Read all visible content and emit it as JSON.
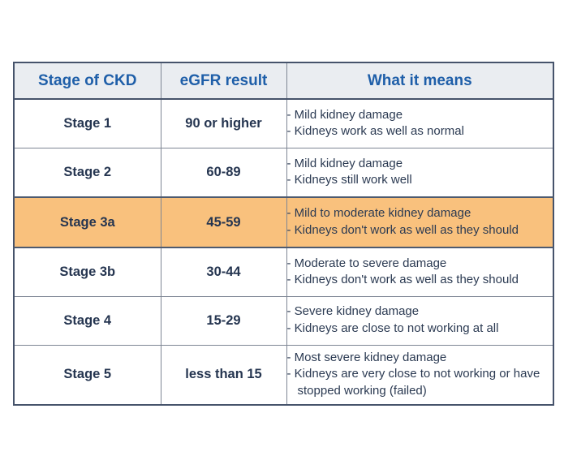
{
  "colors": {
    "header_text_blue": "#1f5fa9",
    "header_bg": "#eaedf1",
    "body_text_navy": "#253550",
    "highlight_orange": "#f9c17d",
    "outer_border": "#46536b",
    "inner_border": "#7e8694",
    "page_bg": "#ffffff"
  },
  "chart_data": {
    "type": "table",
    "title": "",
    "columns": [
      "Stage of CKD",
      "eGFR result",
      "What it means"
    ],
    "highlighted_row": "Stage 3a",
    "rows": [
      {
        "stage": "Stage 1",
        "egfr": "90 or higher",
        "notes": [
          "- Mild kidney damage",
          "- Kidneys work as well as normal"
        ]
      },
      {
        "stage": "Stage 2",
        "egfr": "60-89",
        "notes": [
          "- Mild kidney damage",
          "- Kidneys still work well"
        ]
      },
      {
        "stage": "Stage 3a",
        "egfr": "45-59",
        "notes": [
          "- Mild to moderate kidney damage",
          "- Kidneys don't work as well as they should"
        ]
      },
      {
        "stage": "Stage 3b",
        "egfr": "30-44",
        "notes": [
          "- Moderate to severe damage",
          "- Kidneys don't work as well as they should"
        ]
      },
      {
        "stage": "Stage 4",
        "egfr": "15-29",
        "notes": [
          "- Severe kidney damage",
          "- Kidneys are close to not working at all"
        ]
      },
      {
        "stage": "Stage 5",
        "egfr": "less than 15",
        "notes": [
          "- Most severe kidney damage",
          "- Kidneys are very close to not working or have stopped working (failed)"
        ]
      }
    ]
  }
}
